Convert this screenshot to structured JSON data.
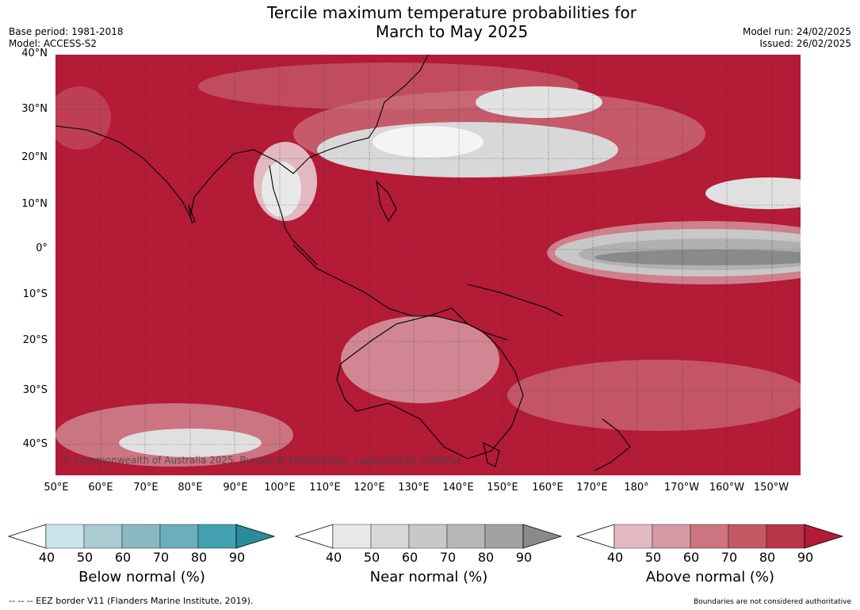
{
  "title_line1": "Tercile maximum temperature probabilities for",
  "title_line2": "March to May 2025",
  "meta_left": {
    "base_period": "Base period: 1981-2018",
    "model": "Model: ACCESS-S2"
  },
  "meta_right": {
    "model_run": "Model run: 24/02/2025",
    "issued": "Issued: 26/02/2025"
  },
  "copyright": "© Commonwealth of Australia 2025, Bureau of Meteorology, supported by COSPPac",
  "lat_labels": [
    "40°N",
    "30°N",
    "20°N",
    "10°N",
    "0°",
    "10°S",
    "20°S",
    "30°S",
    "40°S"
  ],
  "lon_labels": [
    "50°E",
    "60°E",
    "70°E",
    "80°E",
    "90°E",
    "100°E",
    "110°E",
    "120°E",
    "130°E",
    "140°E",
    "150°E",
    "160°E",
    "170°E",
    "180°",
    "170°W",
    "160°W",
    "150°W"
  ],
  "colorbars": [
    {
      "title": "Below normal (%)",
      "ticks": [
        "40",
        "50",
        "60",
        "70",
        "80",
        "90"
      ],
      "colors": [
        "#ffffff",
        "#c9e3e9",
        "#a9cbd1",
        "#8ab8c1",
        "#6caebc",
        "#43a0b0",
        "#2a8b9c"
      ]
    },
    {
      "title": "Near normal (%)",
      "ticks": [
        "40",
        "50",
        "60",
        "70",
        "80",
        "90"
      ],
      "colors": [
        "#ffffff",
        "#e8e8e8",
        "#d8d8d8",
        "#c8c8c8",
        "#b6b6b6",
        "#a2a2a2",
        "#8a8a8a"
      ]
    },
    {
      "title": "Above normal (%)",
      "ticks": [
        "40",
        "50",
        "60",
        "70",
        "80",
        "90"
      ],
      "colors": [
        "#ffffff",
        "#e2b9c0",
        "#d69aa3",
        "#cc7580",
        "#c45966",
        "#b83448",
        "#b31b37"
      ]
    }
  ],
  "footer_left": "--  --  -- EEZ border V11 (Flanders Marine Institute, 2019).",
  "footer_right": "Boundaries are not considered authoritative"
}
